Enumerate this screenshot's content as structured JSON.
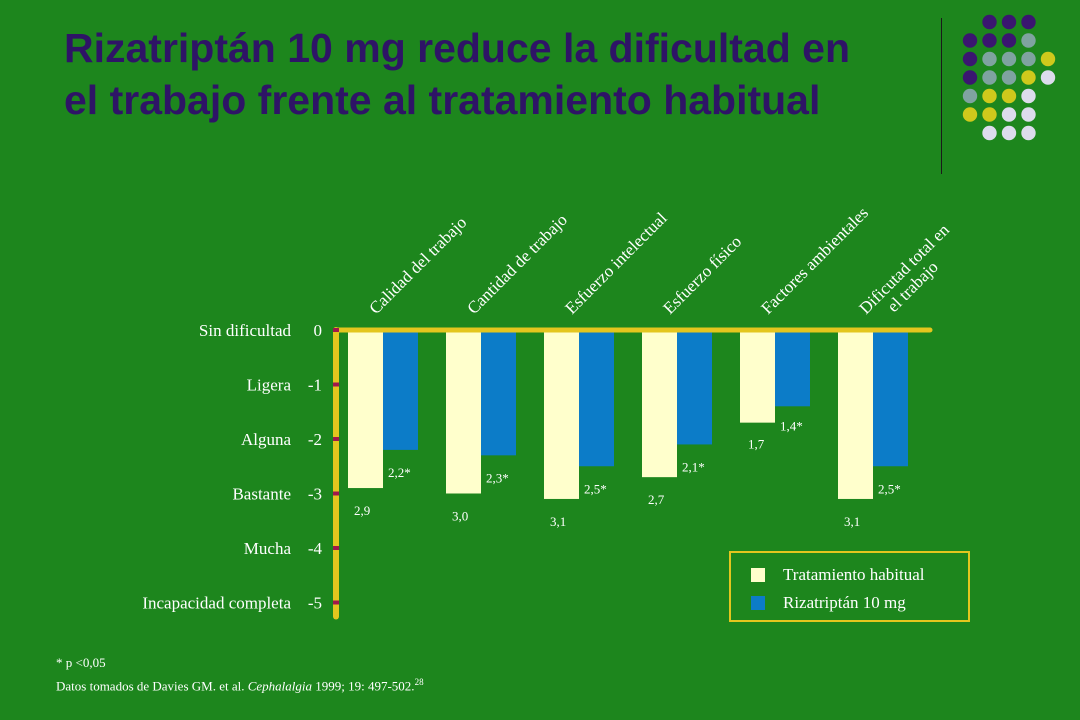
{
  "slide": {
    "title_line1": "Rizatriptán 10 mg reduce la dificultad en",
    "title_line2": "el trabajo frente al tratamiento habitual"
  },
  "colors": {
    "background": "#1d861d",
    "title": "#2e1466",
    "habitual": "#ffffcc",
    "rizatriptan": "#0c7cc8",
    "axis": "#e3c61e",
    "tick": "#a0184c",
    "dot_purple": "#3a1670",
    "dot_gray": "#7fa3a0",
    "dot_yellow": "#cfc91c",
    "dot_light": "#dcdcec"
  },
  "chart_data": {
    "type": "bar",
    "categories": [
      "Calidad del trabajo",
      "Cantidad de trabajo",
      "Esfuerzo intelectual",
      "Esfuerzo físico",
      "Factores ambientales",
      "Dificutad total en el trabajo"
    ],
    "series": [
      {
        "name": "Tratamiento habitual",
        "values": [
          -2.9,
          -3.0,
          -3.1,
          -2.7,
          -1.7,
          -3.1
        ],
        "labels": [
          "2,9",
          "3,0",
          "3,1",
          "2,7",
          "1,7",
          "3,1"
        ]
      },
      {
        "name": "Rizatriptán  10 mg",
        "values": [
          -2.2,
          -2.3,
          -2.5,
          -2.1,
          -1.4,
          -2.5
        ],
        "labels": [
          "2,2*",
          "2,3*",
          "2,5*",
          "2,1*",
          "1,4*",
          "2,5*"
        ]
      }
    ],
    "ylim": [
      -5,
      0
    ],
    "yticks": [
      0,
      -1,
      -2,
      -3,
      -4,
      -5
    ],
    "ytick_labels": [
      "0",
      "-1",
      "-2",
      "-3",
      "-4",
      "-5"
    ],
    "ycategory_labels": [
      "Sin dificultad",
      "Ligera",
      "Alguna",
      "Bastante",
      "Mucha",
      "Incapacidad completa"
    ],
    "legend_position": "bottom-right",
    "grid": false
  },
  "legend": {
    "item1": "Tratamiento habitual",
    "item2": "Rizatriptán  10 mg"
  },
  "footnote": {
    "significance": "* p <0,05",
    "source_prefix": "Datos tomados de Davies GM. et al. ",
    "source_journal": "Cephalalgia",
    "source_suffix": " 1999; 19: 497-502.",
    "source_ref": "28"
  }
}
